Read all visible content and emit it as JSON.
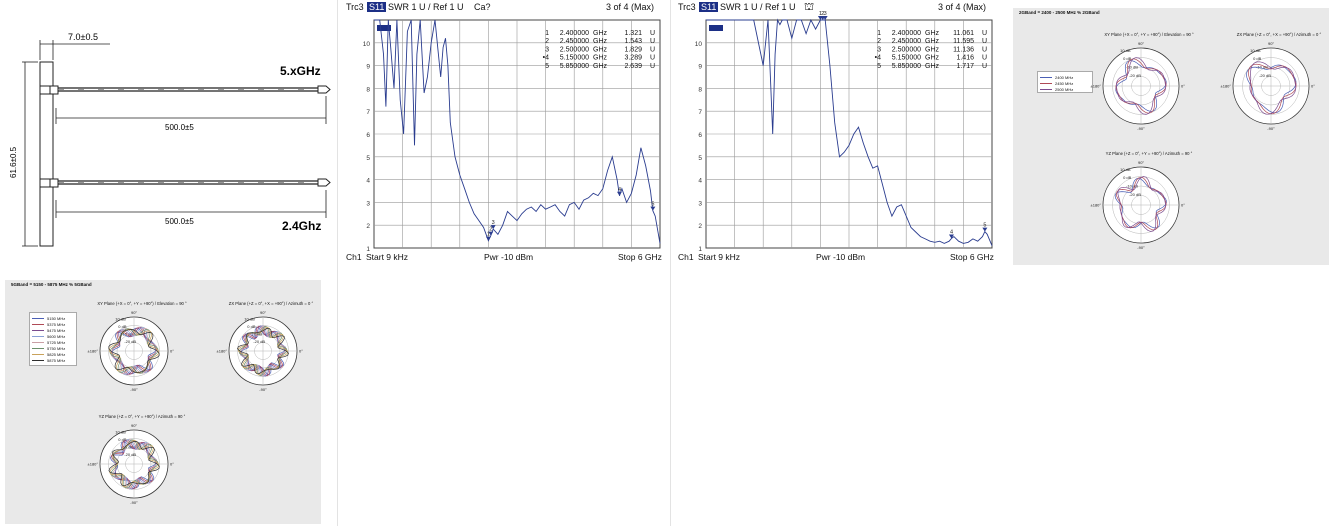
{
  "colors": {
    "trace": "#2a3c8f",
    "trc_tag_bg": "#1c2f86",
    "panel_bg": "#e9e9e9",
    "polar_series": [
      "#4b5fb5",
      "#b04a56",
      "#7a4b8e",
      "#8aa0d6",
      "#caa0a6",
      "#6b8f6b",
      "#c9a25a",
      "#2e2e2e"
    ]
  },
  "drawing": {
    "dims_top": "7.0±0.5",
    "dims_len_top": "500.0±5",
    "dims_len_bottom": "500.0±5",
    "dims_height": "61.6±0.5",
    "label_5g": "5.xGHz",
    "label_24g": "2.4Ghz"
  },
  "vna1": {
    "header": {
      "trc": "Trc3",
      "tag": "S11",
      "fmt": "SWR  1 U /  Ref 1 U",
      "cal": "Ca?",
      "count": "3 of 4 (Max)"
    },
    "markers": [
      {
        "n": "1",
        "f": "2.400000",
        "unit": "GHz",
        "v": "1.321",
        "u": "U"
      },
      {
        "n": "2",
        "f": "2.450000",
        "unit": "GHz",
        "v": "1.543",
        "u": "U"
      },
      {
        "n": "3",
        "f": "2.500000",
        "unit": "GHz",
        "v": "1.829",
        "u": "U"
      },
      {
        "n": "•4",
        "f": "5.150000",
        "unit": "GHz",
        "v": "3.289",
        "u": "U"
      },
      {
        "n": "5",
        "f": "5.850000",
        "unit": "GHz",
        "v": "2.639",
        "u": "U"
      }
    ],
    "footer": {
      "ch": "Ch1",
      "start": "Start  9 kHz",
      "pwr": "Pwr  -10 dBm",
      "stop": "Stop  6 GHz"
    }
  },
  "vna2": {
    "header": {
      "trc": "Trc3",
      "tag": "S11",
      "fmt": "SWR  1 U /  Ref 1 U",
      "cal": "",
      "count": "3 of 4 (Max)"
    },
    "markers": [
      {
        "n": "1",
        "f": "2.400000",
        "unit": "GHz",
        "v": "11.061",
        "u": "U"
      },
      {
        "n": "2",
        "f": "2.450000",
        "unit": "GHz",
        "v": "11.595",
        "u": "U"
      },
      {
        "n": "3",
        "f": "2.500000",
        "unit": "GHz",
        "v": "11.136",
        "u": "U"
      },
      {
        "n": "•4",
        "f": "5.150000",
        "unit": "GHz",
        "v": "1.416",
        "u": "U"
      },
      {
        "n": "5",
        "f": "5.850000",
        "unit": "GHz",
        "v": "1.717",
        "u": "U"
      }
    ],
    "footer": {
      "ch": "Ch1",
      "start": "Start  9 kHz",
      "pwr": "Pwr  -10 dBm",
      "stop": "Stop  6 GHz"
    }
  },
  "polar24": {
    "title": "2GBand = 2400 - 2500 MHz % 2GBand",
    "legend": [
      "2400 MHz",
      "2450 MHz",
      "2500 MHz"
    ],
    "plots": [
      {
        "title": "XY Plane (+X = 0°, +Y = +90°) / Elevation = 90 °"
      },
      {
        "title": "ZX Plane (+Z = 0°, +X = +90°) / Azimuth = 0 °"
      },
      {
        "title": "YZ Plane (+Z = 0°, +Y = +90°) / Azimuth = 90 °"
      }
    ]
  },
  "polar5": {
    "title": "5GBand = 5150 - 5875 MHz % 5GBand",
    "legend": [
      "5150 MHz",
      "5375 MHz",
      "5475 MHz",
      "5600 MHz",
      "5725 MHz",
      "5750 MHz",
      "5825 MHz",
      "5875 MHz"
    ],
    "plots": [
      {
        "title": "XY Plane (+X = 0°, +Y = +90°) / Elevation = 90 °"
      },
      {
        "title": "ZX Plane (+Z = 0°, +X = +90°) / Azimuth = 0 °"
      },
      {
        "title": "YZ Plane (+Z = 0°, +Y = +90°) / Azimuth = 90 °"
      }
    ]
  },
  "polar_labels": {
    "rings": [
      "10 dB",
      "0 dB",
      "-10 dB",
      "-20 dB"
    ],
    "angles": {
      "top": "90°",
      "bottom": "-90°",
      "left": "±180°",
      "right": "0°"
    }
  },
  "chart_data": [
    {
      "type": "line",
      "title": "",
      "xlabel": "",
      "ylabel": "",
      "xlim": [
        0,
        6
      ],
      "ylim": [
        1,
        11
      ],
      "yticks": [
        "1",
        "2",
        "3",
        "4",
        "5",
        "6",
        "7",
        "8",
        "9",
        "10"
      ],
      "grid": true,
      "series": [
        {
          "x": [
            0,
            0.12,
            0.2,
            0.25,
            0.3,
            0.35,
            0.42,
            0.48,
            0.55,
            0.62,
            0.7,
            0.78,
            0.85,
            0.9,
            0.97,
            1.05,
            1.12,
            1.2,
            1.28,
            1.35,
            1.4,
            1.45,
            1.5,
            1.55,
            1.6,
            1.7,
            1.8,
            1.9,
            2.0,
            2.1,
            2.2,
            2.3,
            2.4,
            2.45,
            2.5,
            2.6,
            2.7,
            2.8,
            2.9,
            3.0,
            3.1,
            3.2,
            3.3,
            3.4,
            3.5,
            3.6,
            3.7,
            3.8,
            3.9,
            4.0,
            4.1,
            4.2,
            4.3,
            4.4,
            4.5,
            4.6,
            4.7,
            4.8,
            4.9,
            5.0,
            5.1,
            5.15,
            5.2,
            5.3,
            5.4,
            5.5,
            5.6,
            5.7,
            5.8,
            5.85,
            5.9,
            6.0
          ],
          "y": [
            11,
            11,
            9.5,
            7.2,
            11,
            9.8,
            8.0,
            11,
            7.5,
            6.0,
            10.5,
            11,
            5.5,
            9.5,
            11,
            7.8,
            8.5,
            10,
            11,
            9.5,
            8.5,
            9.8,
            10.2,
            9.0,
            6.5,
            5.0,
            4.2,
            3.6,
            3.0,
            2.5,
            2.2,
            1.9,
            1.32,
            1.54,
            1.83,
            1.6,
            2.0,
            2.6,
            2.4,
            2.2,
            2.5,
            2.7,
            2.8,
            2.6,
            2.9,
            2.7,
            2.8,
            2.9,
            2.6,
            2.4,
            2.9,
            3.0,
            2.7,
            3.1,
            3.2,
            3.4,
            3.3,
            3.6,
            4.4,
            5.0,
            4.0,
            3.29,
            3.6,
            3.0,
            3.4,
            4.2,
            5.4,
            4.6,
            3.5,
            2.64,
            2.4,
            1.2
          ]
        }
      ]
    },
    {
      "type": "line",
      "title": "",
      "xlabel": "",
      "ylabel": "",
      "xlim": [
        0,
        6
      ],
      "ylim": [
        1,
        11
      ],
      "yticks": [
        "1",
        "2",
        "3",
        "4",
        "5",
        "6",
        "7",
        "8",
        "9",
        "10"
      ],
      "grid": true,
      "series": [
        {
          "x": [
            0,
            1.0,
            1.2,
            1.3,
            1.35,
            1.4,
            1.45,
            1.5,
            1.55,
            1.6,
            1.7,
            1.8,
            1.9,
            2.0,
            2.1,
            2.2,
            2.3,
            2.4,
            2.45,
            2.5,
            2.6,
            2.7,
            2.8,
            2.9,
            3.0,
            3.1,
            3.2,
            3.3,
            3.4,
            3.5,
            3.6,
            3.7,
            3.8,
            3.9,
            4.0,
            4.1,
            4.2,
            4.3,
            4.4,
            4.5,
            4.6,
            4.7,
            4.8,
            4.9,
            5.0,
            5.1,
            5.15,
            5.2,
            5.3,
            5.4,
            5.5,
            5.6,
            5.7,
            5.8,
            5.85,
            5.9,
            6.0
          ],
          "y": [
            11,
            11,
            9.0,
            11,
            8.5,
            6.0,
            9.5,
            11,
            10.8,
            11,
            11,
            10.2,
            11,
            11,
            10.4,
            11,
            10.6,
            11.06,
            11.6,
            11.14,
            9.0,
            6.5,
            5.0,
            5.2,
            5.5,
            6.0,
            6.3,
            5.6,
            5.0,
            4.5,
            4.6,
            3.8,
            3.0,
            2.4,
            2.8,
            2.9,
            2.4,
            1.9,
            1.7,
            1.5,
            1.4,
            1.3,
            1.25,
            1.3,
            1.2,
            1.3,
            1.42,
            1.5,
            1.3,
            1.2,
            1.25,
            1.4,
            1.3,
            1.5,
            1.72,
            1.6,
            1.1
          ]
        }
      ]
    }
  ]
}
